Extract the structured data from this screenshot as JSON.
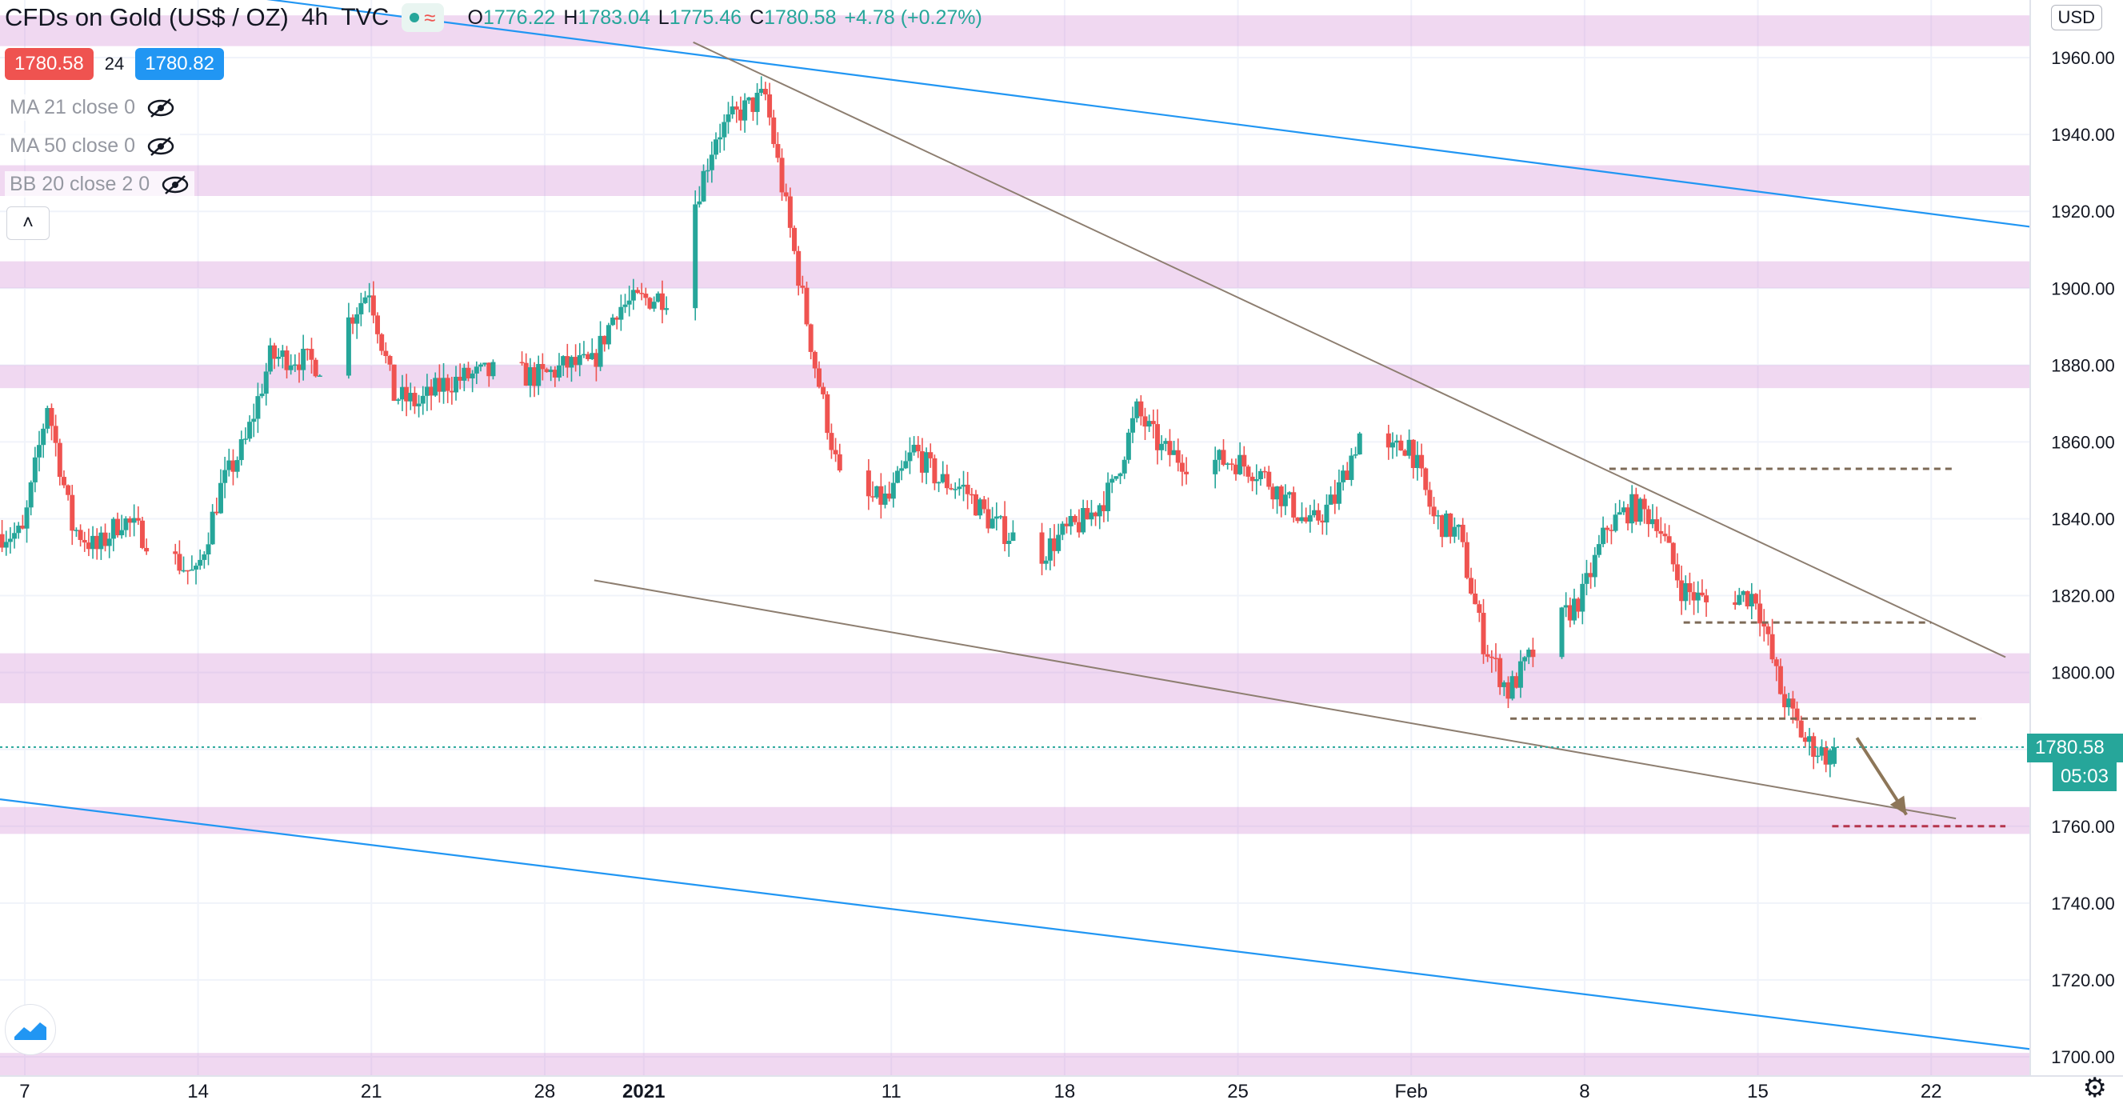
{
  "header": {
    "symbol_title": "CFDs on Gold (US$ / OZ)",
    "interval": "4h",
    "source": "TVC",
    "ohlc": {
      "open_label": "O",
      "open": "1776.22",
      "high_label": "H",
      "high": "1783.04",
      "low_label": "L",
      "low": "1775.46",
      "close_label": "C",
      "close": "1780.58",
      "change": "+4.78 (+0.27%)"
    },
    "status_icon": "market-open-dot",
    "status_icon_2": "data-delay-wave"
  },
  "quote": {
    "sell": "1780.58",
    "spread": "24",
    "buy": "1780.82"
  },
  "indicators": [
    {
      "label": "MA 21 close 0",
      "icon": "eye-hidden-icon"
    },
    {
      "label": "MA 50 close 0",
      "icon": "eye-hidden-icon"
    },
    {
      "label": "BB 20 close 2 0",
      "icon": "eye-hidden-icon"
    }
  ],
  "axis": {
    "currency": "USD",
    "last_price": "1780.58",
    "countdown": "05:03"
  },
  "colors": {
    "up": "#26a69a",
    "down": "#ef5350",
    "zone": "#d58fd6",
    "channel": "#2196f3",
    "trendline": "#8d7e70",
    "level": "#7d6a57",
    "target": "#b5364d",
    "arrow": "#8d7658"
  },
  "chart_data": {
    "type": "candlestick",
    "title": "CFDs on Gold (US$ / OZ)",
    "interval": "4h",
    "ylim": [
      1695,
      1975
    ],
    "y_ticks": [
      1960,
      1940,
      1920,
      1900,
      1880,
      1860,
      1840,
      1820,
      1800,
      1780,
      1760,
      1740,
      1720,
      1700
    ],
    "x_ticks": [
      {
        "label": "7",
        "date": "2020-12-07"
      },
      {
        "label": "14",
        "date": "2020-12-14"
      },
      {
        "label": "21",
        "date": "2020-12-21"
      },
      {
        "label": "28",
        "date": "2020-12-28"
      },
      {
        "label": "2021",
        "date": "2021-01-01",
        "bold": true
      },
      {
        "label": "11",
        "date": "2021-01-11"
      },
      {
        "label": "18",
        "date": "2021-01-18"
      },
      {
        "label": "25",
        "date": "2021-01-25"
      },
      {
        "label": "Feb",
        "date": "2021-02-01"
      },
      {
        "label": "8",
        "date": "2021-02-08"
      },
      {
        "label": "15",
        "date": "2021-02-15"
      },
      {
        "label": "22",
        "date": "2021-02-22"
      }
    ],
    "x_range": [
      "2020-12-06",
      "2021-02-26"
    ],
    "path": [
      [
        "2020-12-06",
        1836
      ],
      [
        "2020-12-07",
        1836
      ],
      [
        "2020-12-08",
        1870
      ],
      [
        "2020-12-09",
        1838
      ],
      [
        "2020-12-10",
        1832
      ],
      [
        "2020-12-11",
        1840
      ],
      [
        "2020-12-12",
        1835
      ],
      [
        "2020-12-14",
        1825
      ],
      [
        "2020-12-15",
        1848
      ],
      [
        "2020-12-16",
        1860
      ],
      [
        "2020-12-17",
        1882
      ],
      [
        "2020-12-18",
        1882
      ],
      [
        "2020-12-19",
        1880
      ],
      [
        "2020-12-21",
        1900
      ],
      [
        "2020-12-22",
        1872
      ],
      [
        "2020-12-23",
        1870
      ],
      [
        "2020-12-24",
        1875
      ],
      [
        "2020-12-25",
        1877
      ],
      [
        "2020-12-26",
        1878
      ],
      [
        "2020-12-28",
        1877
      ],
      [
        "2020-12-29",
        1880
      ],
      [
        "2020-12-30",
        1880
      ],
      [
        "2020-12-31",
        1895
      ],
      [
        "2021-01-01",
        1897
      ],
      [
        "2021-01-02",
        1898
      ],
      [
        "2021-01-04",
        1940
      ],
      [
        "2021-01-05",
        1946
      ],
      [
        "2021-01-06",
        1950
      ],
      [
        "2021-01-07",
        1915
      ],
      [
        "2021-01-08",
        1880
      ],
      [
        "2021-01-09",
        1850
      ],
      [
        "2021-01-10",
        1845
      ],
      [
        "2021-01-11",
        1845
      ],
      [
        "2021-01-12",
        1858
      ],
      [
        "2021-01-13",
        1850
      ],
      [
        "2021-01-14",
        1848
      ],
      [
        "2021-01-15",
        1840
      ],
      [
        "2021-01-17",
        1830
      ],
      [
        "2021-01-18",
        1836
      ],
      [
        "2021-01-19",
        1840
      ],
      [
        "2021-01-20",
        1848
      ],
      [
        "2021-01-21",
        1868
      ],
      [
        "2021-01-22",
        1858
      ],
      [
        "2021-01-23",
        1855
      ],
      [
        "2021-01-25",
        1855
      ],
      [
        "2021-01-26",
        1852
      ],
      [
        "2021-01-27",
        1845
      ],
      [
        "2021-01-28",
        1838
      ],
      [
        "2021-01-29",
        1845
      ],
      [
        "2021-01-30",
        1862
      ],
      [
        "2021-01-31",
        1856
      ],
      [
        "2021-02-01",
        1860
      ],
      [
        "2021-02-02",
        1840
      ],
      [
        "2021-02-03",
        1836
      ],
      [
        "2021-02-04",
        1808
      ],
      [
        "2021-02-05",
        1795
      ],
      [
        "2021-02-06",
        1805
      ],
      [
        "2021-02-08",
        1820
      ],
      [
        "2021-02-09",
        1838
      ],
      [
        "2021-02-10",
        1843
      ],
      [
        "2021-02-11",
        1840
      ],
      [
        "2021-02-12",
        1822
      ],
      [
        "2021-02-13",
        1818
      ],
      [
        "2021-02-14",
        1820
      ],
      [
        "2021-02-15",
        1820
      ],
      [
        "2021-02-16",
        1795
      ],
      [
        "2021-02-17",
        1782
      ],
      [
        "2021-02-18",
        1778
      ]
    ],
    "last_candle": {
      "date": "2021-02-18",
      "open": 1776.22,
      "high": 1783.04,
      "low": 1775.46,
      "close": 1780.58
    },
    "zones": [
      {
        "from": 1963,
        "to": 1971
      },
      {
        "from": 1924,
        "to": 1932
      },
      {
        "from": 1900,
        "to": 1907
      },
      {
        "from": 1874,
        "to": 1880
      },
      {
        "from": 1792,
        "to": 1805
      },
      {
        "from": 1758,
        "to": 1765
      },
      {
        "from": 1695,
        "to": 1701
      }
    ],
    "channel_lines": [
      {
        "from": [
          "2020-11-29",
          1990
        ],
        "to": [
          "2021-02-26",
          1916
        ]
      },
      {
        "from": [
          "2020-12-06",
          1767
        ],
        "to": [
          "2021-02-26",
          1702
        ]
      }
    ],
    "trend_lines": [
      {
        "from": [
          "2021-01-03",
          1964
        ],
        "to": [
          "2021-02-25",
          1804
        ]
      },
      {
        "from": [
          "2020-12-30",
          1824
        ],
        "to": [
          "2021-02-23",
          1762
        ]
      }
    ],
    "horizontal_levels": [
      {
        "price": 1853,
        "from": "2021-02-09",
        "to": "2021-02-23"
      },
      {
        "price": 1813,
        "from": "2021-02-12",
        "to": "2021-02-22"
      },
      {
        "price": 1788,
        "from": "2021-02-05",
        "to": "2021-02-24"
      },
      {
        "price": 1760,
        "from": "2021-02-18",
        "to": "2021-02-25",
        "style": "target"
      }
    ],
    "projection_arrow": {
      "from": [
        "2021-02-19",
        1783
      ],
      "to": [
        "2021-02-21",
        1763
      ]
    },
    "grid": true
  }
}
